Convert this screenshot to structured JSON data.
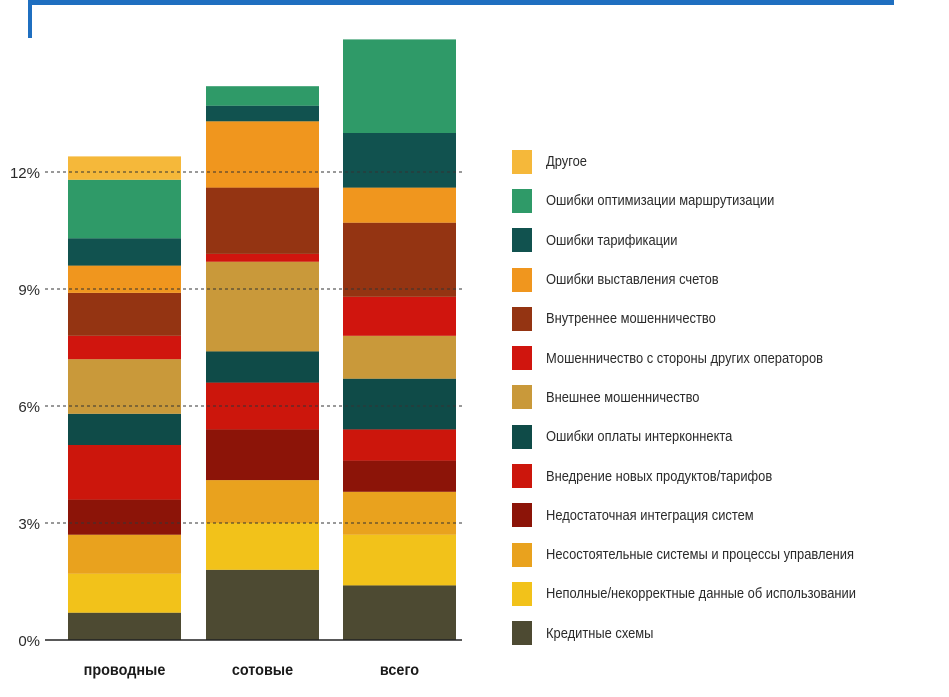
{
  "chart_data": {
    "type": "bar",
    "stacked": true,
    "categories": [
      "проводные",
      "сотовые",
      "всего"
    ],
    "y_ticks": [
      "0%",
      "3%",
      "6%",
      "9%",
      "12%"
    ],
    "y_tick_values": [
      0,
      3,
      6,
      9,
      12
    ],
    "ylim": [
      0,
      15.8
    ],
    "gridlines": "dashed at ticks",
    "legend_position": "right",
    "series": [
      {
        "name": "Кредитные схемы",
        "color": "#4d4a32",
        "values": [
          0.7,
          1.8,
          1.4
        ]
      },
      {
        "name": "Неполные/некорректные данные об использовании",
        "color": "#f2c21a",
        "values": [
          1.0,
          1.2,
          1.3
        ]
      },
      {
        "name": "Несостоятельные системы и процессы управления",
        "color": "#e9a21e",
        "values": [
          1.0,
          1.1,
          1.1
        ]
      },
      {
        "name": "Недостаточная интеграция систем",
        "color": "#8c1408",
        "values": [
          0.9,
          1.3,
          0.8
        ]
      },
      {
        "name": "Внедрение новых продуктов/тарифов",
        "color": "#cc160c",
        "values": [
          1.4,
          1.2,
          0.8
        ]
      },
      {
        "name": "Ошибки оплаты интерконнекта",
        "color": "#0f4b48",
        "values": [
          0.8,
          0.8,
          1.3
        ]
      },
      {
        "name": "Внешнее мошенничество",
        "color": "#c9993a",
        "values": [
          1.4,
          2.3,
          1.1
        ]
      },
      {
        "name": "Мошенничество с стороны других операторов",
        "color": "#d0150e",
        "values": [
          0.6,
          0.2,
          1.0
        ]
      },
      {
        "name": "Внутреннее мошенничество",
        "color": "#943412",
        "values": [
          1.1,
          1.7,
          1.9
        ]
      },
      {
        "name": "Ошибки выставления счетов",
        "color": "#f0961e",
        "values": [
          0.7,
          1.7,
          0.9
        ]
      },
      {
        "name": "Ошибки тарификации",
        "color": "#11524f",
        "values": [
          0.7,
          0.4,
          1.4
        ]
      },
      {
        "name": "Ошибки оптимизации маршрутизации",
        "color": "#2f9a68",
        "values": [
          1.5,
          0.5,
          2.4
        ]
      },
      {
        "name": "Другое",
        "color": "#f5b83a",
        "values": [
          0.6,
          0.0,
          0.0
        ]
      }
    ],
    "legend_order": [
      "Другое",
      "Ошибки оптимизации маршрутизации",
      "Ошибки тарификации",
      "Ошибки выставления счетов",
      "Внутреннее мошенничество",
      "Мошенничество с стороны других операторов",
      "Внешнее мошенничество",
      "Ошибки оплаты интерконнекта",
      "Внедрение новых продуктов/тарифов",
      "Недостаточная интеграция систем",
      "Несостоятельные системы и процессы управления",
      "Неполные/некорректные данные об использовании",
      "Кредитные схемы"
    ]
  }
}
